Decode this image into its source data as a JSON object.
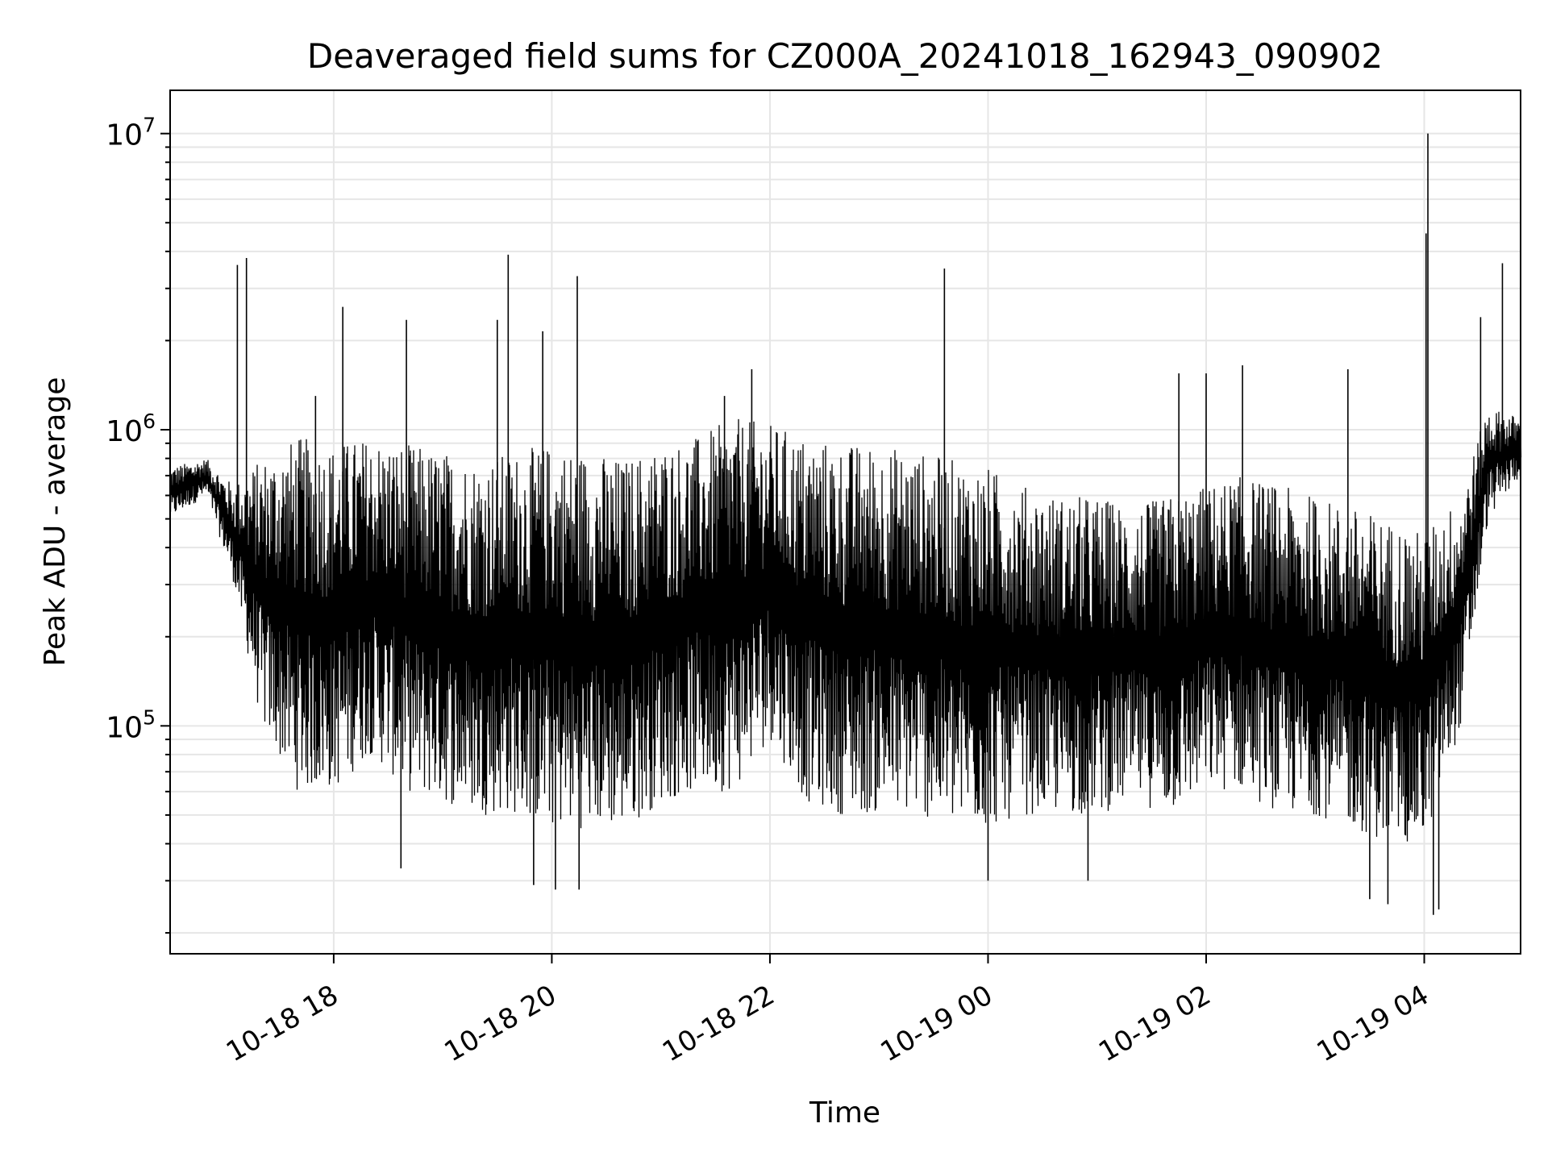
{
  "chart_data": {
    "type": "line",
    "title": "Deaveraged field sums for CZ000A_20241018_162943_090902",
    "xlabel": "Time",
    "ylabel": "Peak ADU - average",
    "yscale": "log",
    "ylim": [
      17000,
      14000000
    ],
    "xlim": [
      "2024-10-18 16:30",
      "2024-10-19 04:53"
    ],
    "grid": true,
    "legend": "none",
    "line_color": "#000000",
    "x_ticks": [
      {
        "value": "2024-10-18 18:00",
        "label": "10-18 18"
      },
      {
        "value": "2024-10-18 20:00",
        "label": "10-18 20"
      },
      {
        "value": "2024-10-18 22:00",
        "label": "10-18 22"
      },
      {
        "value": "2024-10-19 00:00",
        "label": "10-19 00"
      },
      {
        "value": "2024-10-19 02:00",
        "label": "10-19 02"
      },
      {
        "value": "2024-10-19 04:00",
        "label": "10-19 04"
      }
    ],
    "y_ticks": [
      {
        "value": 100000,
        "base": "10",
        "exp": "5"
      },
      {
        "value": 1000000,
        "base": "10",
        "exp": "6"
      },
      {
        "value": 10000000,
        "base": "10",
        "exp": "7"
      }
    ],
    "envelope": {
      "time": [
        "2024-10-18 16:30",
        "2024-10-18 16:50",
        "2024-10-18 17:05",
        "2024-10-18 17:20",
        "2024-10-18 17:40",
        "2024-10-18 18:00",
        "2024-10-18 18:20",
        "2024-10-18 18:40",
        "2024-10-18 19:00",
        "2024-10-18 19:20",
        "2024-10-18 19:40",
        "2024-10-18 20:00",
        "2024-10-18 20:20",
        "2024-10-18 20:40",
        "2024-10-18 21:00",
        "2024-10-18 21:20",
        "2024-10-18 21:40",
        "2024-10-18 22:00",
        "2024-10-18 22:20",
        "2024-10-18 22:40",
        "2024-10-18 23:00",
        "2024-10-18 23:20",
        "2024-10-18 23:40",
        "2024-10-19 00:00",
        "2024-10-19 00:20",
        "2024-10-19 00:40",
        "2024-10-19 01:00",
        "2024-10-19 01:20",
        "2024-10-19 01:40",
        "2024-10-19 02:00",
        "2024-10-19 02:20",
        "2024-10-19 02:40",
        "2024-10-19 03:00",
        "2024-10-19 03:20",
        "2024-10-19 03:40",
        "2024-10-19 04:00",
        "2024-10-19 04:20",
        "2024-10-19 04:35",
        "2024-10-19 04:53"
      ],
      "upper": [
        750000,
        800000,
        650000,
        800000,
        950000,
        900000,
        950000,
        900000,
        850000,
        800000,
        850000,
        900000,
        850000,
        800000,
        900000,
        950000,
        1100000,
        1050000,
        950000,
        900000,
        900000,
        850000,
        800000,
        750000,
        650000,
        600000,
        600000,
        550000,
        600000,
        650000,
        700000,
        650000,
        600000,
        550000,
        500000,
        450000,
        600000,
        1200000,
        1100000
      ],
      "lower": [
        500000,
        600000,
        300000,
        100000,
        60000,
        60000,
        80000,
        60000,
        55000,
        50000,
        50000,
        45000,
        45000,
        45000,
        55000,
        60000,
        60000,
        90000,
        55000,
        50000,
        50000,
        50000,
        45000,
        45000,
        50000,
        50000,
        50000,
        55000,
        50000,
        60000,
        60000,
        50000,
        50000,
        45000,
        40000,
        40000,
        100000,
        500000,
        700000
      ]
    },
    "spikes": [
      {
        "time": "2024-10-18 17:07",
        "value": 3600000
      },
      {
        "time": "2024-10-18 17:12",
        "value": 3800000
      },
      {
        "time": "2024-10-18 17:50",
        "value": 1300000
      },
      {
        "time": "2024-10-18 18:05",
        "value": 2600000
      },
      {
        "time": "2024-10-18 18:40",
        "value": 2350000
      },
      {
        "time": "2024-10-18 18:37",
        "value": 33000
      },
      {
        "time": "2024-10-18 19:30",
        "value": 2350000
      },
      {
        "time": "2024-10-18 19:36",
        "value": 3900000
      },
      {
        "time": "2024-10-18 19:55",
        "value": 2150000
      },
      {
        "time": "2024-10-18 19:50",
        "value": 29000
      },
      {
        "time": "2024-10-18 20:02",
        "value": 28000
      },
      {
        "time": "2024-10-18 20:14",
        "value": 3300000
      },
      {
        "time": "2024-10-18 20:15",
        "value": 28000
      },
      {
        "time": "2024-10-18 21:35",
        "value": 1300000
      },
      {
        "time": "2024-10-18 21:50",
        "value": 1600000
      },
      {
        "time": "2024-10-18 23:36",
        "value": 3500000
      },
      {
        "time": "2024-10-19 00:00",
        "value": 30000
      },
      {
        "time": "2024-10-19 00:55",
        "value": 30000
      },
      {
        "time": "2024-10-19 01:45",
        "value": 1550000
      },
      {
        "time": "2024-10-19 02:00",
        "value": 1550000
      },
      {
        "time": "2024-10-19 02:20",
        "value": 1650000
      },
      {
        "time": "2024-10-19 03:18",
        "value": 1600000
      },
      {
        "time": "2024-10-19 03:30",
        "value": 26000
      },
      {
        "time": "2024-10-19 03:40",
        "value": 25000
      },
      {
        "time": "2024-10-19 04:01",
        "value": 4600000
      },
      {
        "time": "2024-10-19 04:02",
        "value": 10000000
      },
      {
        "time": "2024-10-19 04:05",
        "value": 23000
      },
      {
        "time": "2024-10-19 04:08",
        "value": 24000
      },
      {
        "time": "2024-10-19 04:31",
        "value": 2400000
      },
      {
        "time": "2024-10-19 04:43",
        "value": 3650000
      }
    ]
  }
}
